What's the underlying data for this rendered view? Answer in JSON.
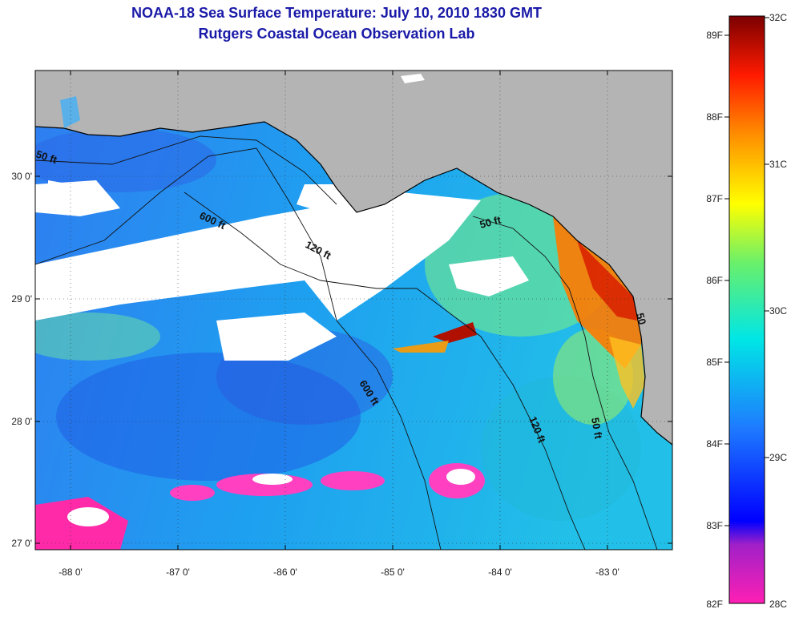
{
  "title_line1": "NOAA-18 Sea Surface Temperature:  July 10, 2010 1830 GMT",
  "title_line2": "Rutgers Coastal Ocean Observation Lab",
  "map": {
    "lon_range": [
      -88.33,
      -82.48
    ],
    "lat_range": [
      26.97,
      30.87
    ],
    "lon_ticks": [
      "-88 0'",
      "-87 0'",
      "-86 0'",
      "-85 0'",
      "-84 0'",
      "-83 0'"
    ],
    "lat_ticks": [
      "30 0'",
      "29 0'",
      "28 0'",
      "27 0'"
    ],
    "contour_labels": [
      "50 ft",
      "600 ft",
      "120 ft",
      "50 ft",
      "600 ft",
      "120 ft",
      "50 ft",
      "50"
    ],
    "colors": {
      "land": "#b4b4b4",
      "cloud": "#ffffff",
      "water_warm": "#ff4500",
      "water_cool": "#1e90ff"
    }
  },
  "colorbar": {
    "fahrenheit_labels": [
      "89F",
      "88F",
      "87F",
      "86F",
      "85F",
      "84F",
      "83F",
      "82F"
    ],
    "celsius_labels": [
      "32C",
      "31C",
      "30C",
      "29C",
      "28C"
    ],
    "range_c": [
      28,
      32
    ]
  }
}
